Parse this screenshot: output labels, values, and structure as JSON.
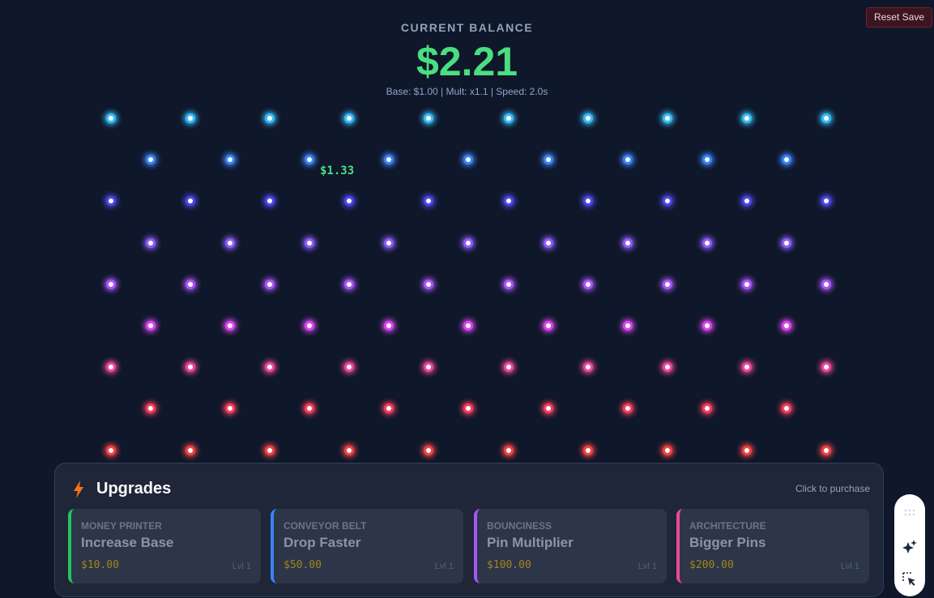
{
  "header": {
    "reset_label": "Reset Save",
    "balance_label": "CURRENT BALANCE",
    "balance_value": "$2.21",
    "stats": "Base: $1.00 | Mult: x1.1 | Speed: 2.0s"
  },
  "board": {
    "floater_text": "$1.33",
    "row_colors": [
      "#38bdf8",
      "#3b82f6",
      "#4f46e5",
      "#8b5cf6",
      "#a855f7",
      "#d946ef",
      "#ec4899",
      "#f43f5e",
      "#ef4444"
    ]
  },
  "upgrades": {
    "title": "Upgrades",
    "icon": "lightning-bolt-icon",
    "hint": "Click to purchase",
    "cards": [
      {
        "category": "MONEY PRINTER",
        "name": "Increase Base",
        "cost": "$10.00",
        "level": "Lvl 1",
        "accent": "#22c55e"
      },
      {
        "category": "CONVEYOR BELT",
        "name": "Drop Faster",
        "cost": "$50.00",
        "level": "Lvl 1",
        "accent": "#3b82f6"
      },
      {
        "category": "BOUNCINESS",
        "name": "Pin Multiplier",
        "cost": "$100.00",
        "level": "Lvl 1",
        "accent": "#a855f7"
      },
      {
        "category": "ARCHITECTURE",
        "name": "Bigger Pins",
        "cost": "$200.00",
        "level": "Lvl 1",
        "accent": "#ec4899"
      }
    ]
  },
  "side_toolbar": {
    "icons": [
      "grid-dots-icon",
      "sparkle-icon",
      "select-arrow-icon"
    ]
  }
}
